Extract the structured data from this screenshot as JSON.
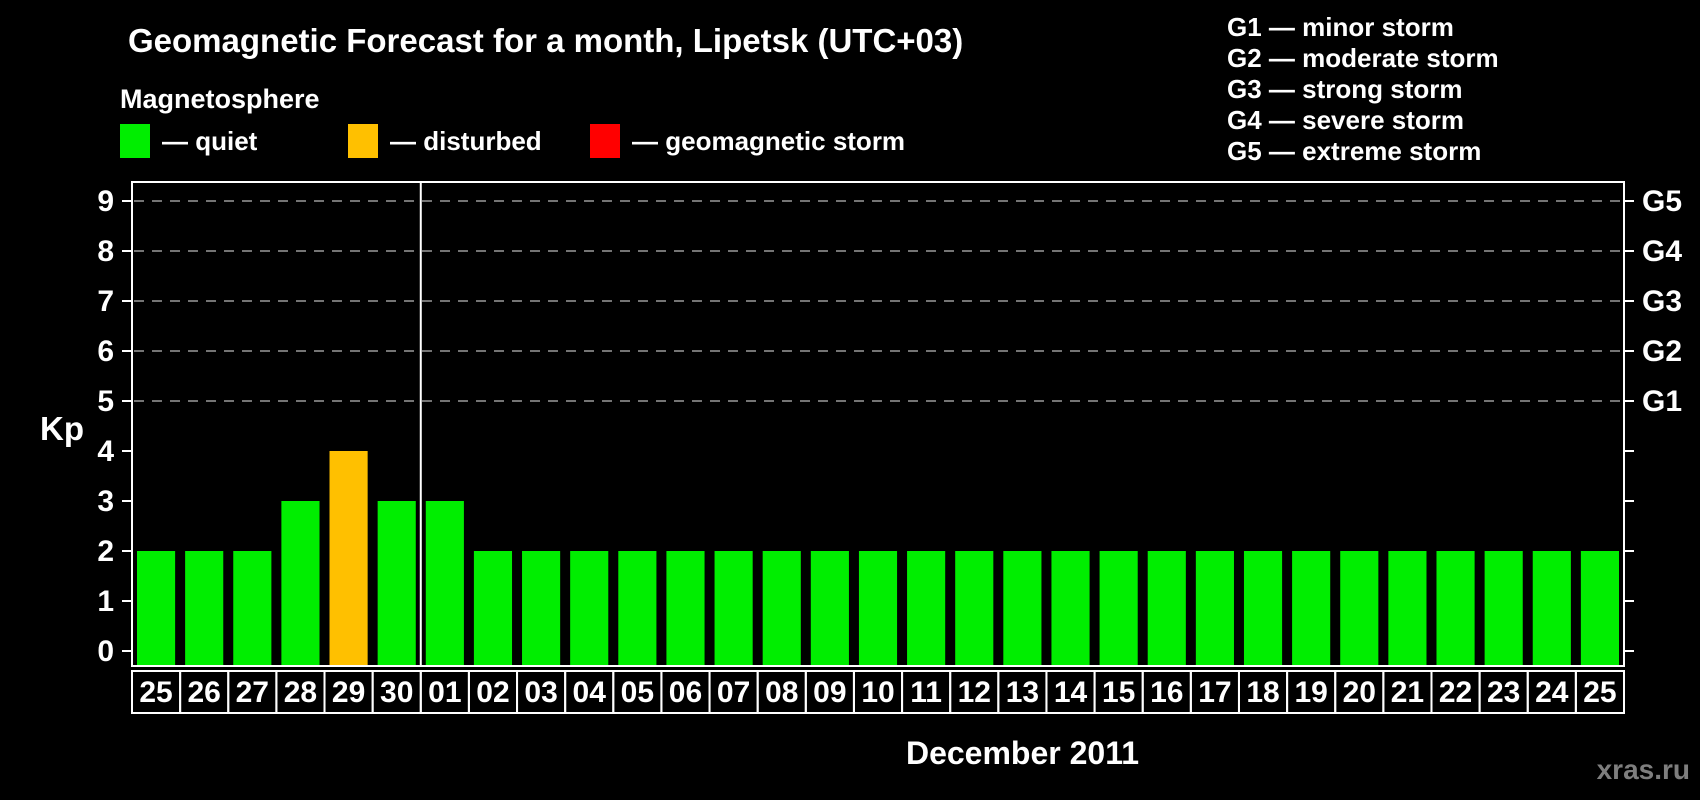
{
  "header": {
    "title": "Geomagnetic Forecast for a month, Lipetsk (UTC+03)",
    "subtitle": "Magnetosphere"
  },
  "legend": {
    "items": [
      {
        "name": "quiet",
        "label": "— quiet",
        "color": "#00ee00"
      },
      {
        "name": "disturbed",
        "label": "— disturbed",
        "color": "#ffc000"
      },
      {
        "name": "storm",
        "label": "— geomagnetic storm",
        "color": "#ff0000"
      }
    ]
  },
  "g_scale_legend": {
    "lines": [
      "G1 — minor storm",
      "G2 — moderate storm",
      "G3 — strong storm",
      "G4 — severe storm",
      "G5 — extreme storm"
    ]
  },
  "footer": {
    "month_label": "December 2011",
    "watermark": "xras.ru"
  },
  "chart_data": {
    "type": "bar",
    "title": "Geomagnetic Forecast for a month, Lipetsk (UTC+03)",
    "ylabel": "Kp",
    "xlabel": "December 2011",
    "ylim": [
      0,
      9
    ],
    "yticks": [
      0,
      1,
      2,
      3,
      4,
      5,
      6,
      7,
      8,
      9
    ],
    "grid_on": true,
    "grid_kp_levels": [
      5,
      6,
      7,
      8,
      9
    ],
    "right_axis_labels": [
      {
        "label": "G1",
        "kp": 5
      },
      {
        "label": "G2",
        "kp": 6
      },
      {
        "label": "G3",
        "kp": 7
      },
      {
        "label": "G4",
        "kp": 8
      },
      {
        "label": "G5",
        "kp": 9
      }
    ],
    "categories": [
      "25",
      "26",
      "27",
      "28",
      "29",
      "30",
      "01",
      "02",
      "03",
      "04",
      "05",
      "06",
      "07",
      "08",
      "09",
      "10",
      "11",
      "12",
      "13",
      "14",
      "15",
      "16",
      "17",
      "18",
      "19",
      "20",
      "21",
      "22",
      "23",
      "24",
      "25"
    ],
    "values": [
      2,
      2,
      2,
      3,
      4,
      3,
      3,
      2,
      2,
      2,
      2,
      2,
      2,
      2,
      2,
      2,
      2,
      2,
      2,
      2,
      2,
      2,
      2,
      2,
      2,
      2,
      2,
      2,
      2,
      2,
      2
    ],
    "statuses": [
      "quiet",
      "quiet",
      "quiet",
      "quiet",
      "disturbed",
      "quiet",
      "quiet",
      "quiet",
      "quiet",
      "quiet",
      "quiet",
      "quiet",
      "quiet",
      "quiet",
      "quiet",
      "quiet",
      "quiet",
      "quiet",
      "quiet",
      "quiet",
      "quiet",
      "quiet",
      "quiet",
      "quiet",
      "quiet",
      "quiet",
      "quiet",
      "quiet",
      "quiet",
      "quiet",
      "quiet"
    ],
    "month_separator_index": 6,
    "legend_position": "top-left"
  }
}
